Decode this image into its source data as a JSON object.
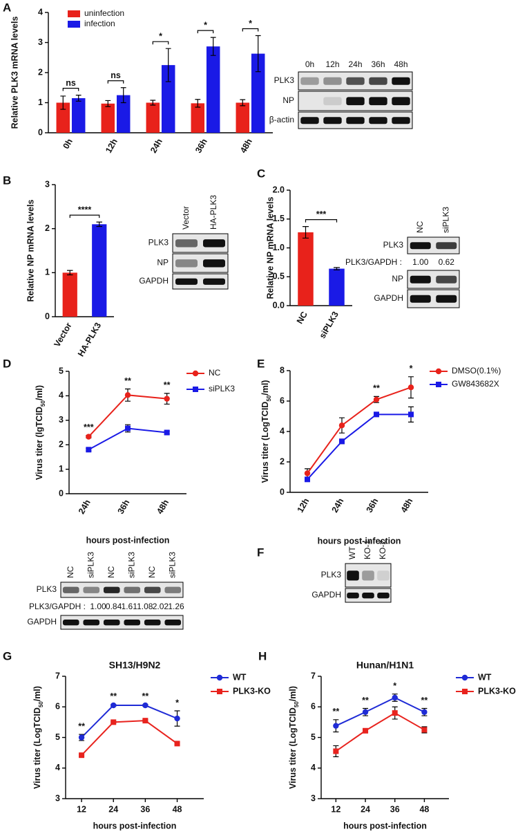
{
  "chart_data": [
    {
      "type": "bar",
      "panel": "A",
      "ylabel": "Relative PLK3 mRNA levels",
      "categories": [
        "0h",
        "12h",
        "24h",
        "36h",
        "48h"
      ],
      "series": [
        {
          "name": "uninfection",
          "color": "#e8221b",
          "values": [
            1.0,
            0.97,
            1.0,
            0.98,
            1.0
          ],
          "errors": [
            0.22,
            0.1,
            0.08,
            0.13,
            0.1
          ]
        },
        {
          "name": "infection",
          "color": "#1a1ae6",
          "values": [
            1.15,
            1.25,
            2.25,
            2.87,
            2.63
          ],
          "errors": [
            0.1,
            0.25,
            0.55,
            0.3,
            0.6
          ]
        }
      ],
      "ylim": [
        0,
        4
      ],
      "yticks": [
        0,
        1,
        2,
        3,
        4
      ],
      "annotations": [
        "ns",
        "ns",
        "*",
        "*",
        "*"
      ]
    },
    {
      "type": "bar",
      "panel": "B",
      "ylabel": "Relative NP mRNA levels",
      "categories": [
        "Vector",
        "HA-PLK3"
      ],
      "values": [
        1.0,
        2.1
      ],
      "errors": [
        0.05,
        0.05
      ],
      "colors": [
        "#e8221b",
        "#1a1ae6"
      ],
      "ylim": [
        0,
        3
      ],
      "yticks": [
        0,
        1,
        2,
        3
      ],
      "annotation": "****"
    },
    {
      "type": "bar",
      "panel": "C",
      "ylabel": "Relative NP mRNA levels",
      "categories": [
        "NC",
        "siPLK3"
      ],
      "values": [
        1.27,
        0.64
      ],
      "errors": [
        0.1,
        0.02
      ],
      "colors": [
        "#e8221b",
        "#1a1ae6"
      ],
      "ylim": [
        0,
        2
      ],
      "yticks": [
        {
          "value": 0,
          "label": "0.0"
        },
        0.5,
        {
          "value": 1,
          "label": "1.0"
        },
        1.5,
        {
          "value": 2,
          "label": "2.0"
        }
      ],
      "annotation": "***"
    },
    {
      "type": "line",
      "panel": "D",
      "ylabel": {
        "text": "Virus titer (lgTCID",
        "sub": "50",
        "tail": "/ml)"
      },
      "xlabel": "hours post-infection",
      "categories": [
        "24h",
        "36h",
        "48h"
      ],
      "series": [
        {
          "name": "NC",
          "color": "#e8221b",
          "marker": "circle",
          "values": [
            2.33,
            4.03,
            3.88
          ],
          "errors": [
            0.05,
            0.25,
            0.22
          ]
        },
        {
          "name": "siPLK3",
          "color": "#1a1ae6",
          "marker": "square",
          "values": [
            1.8,
            2.67,
            2.5
          ],
          "errors": [
            0.05,
            0.15,
            0.06
          ]
        }
      ],
      "ylim": [
        0,
        5
      ],
      "yticks": [
        0,
        1,
        2,
        3,
        4,
        5
      ],
      "annotations": [
        "***",
        "**",
        "**"
      ]
    },
    {
      "type": "line",
      "panel": "E",
      "ylabel": {
        "text": "Virus titer (LogTCID",
        "sub": "50",
        "tail": "/ml)"
      },
      "xlabel": "hours post-infection",
      "categories": [
        "12h",
        "24h",
        "36h",
        "48h"
      ],
      "series": [
        {
          "name": "DMSO(0.1%)",
          "color": "#e8221b",
          "marker": "circle",
          "values": [
            1.25,
            4.4,
            6.1,
            6.9
          ],
          "errors": [
            0.3,
            0.5,
            0.2,
            0.7
          ]
        },
        {
          "name": "GW843682X",
          "color": "#1a1ae6",
          "marker": "square",
          "values": [
            0.85,
            3.35,
            5.12,
            5.12
          ],
          "errors": [
            0.1,
            0.15,
            0.05,
            0.5
          ]
        }
      ],
      "ylim": [
        0,
        8
      ],
      "yticks": [
        0,
        2,
        4,
        6,
        8
      ],
      "annotations": [
        null,
        null,
        "**",
        "*"
      ]
    },
    {
      "type": "line",
      "panel": "G",
      "title": "SH13/H9N2",
      "ylabel": {
        "text": "Virus titer (LogTCID",
        "sub": "50",
        "tail": "/ml)"
      },
      "xlabel": "hours post-infection",
      "x": [
        12,
        24,
        36,
        48
      ],
      "xlim": [
        6,
        58
      ],
      "xticks": [
        12,
        24,
        36,
        48
      ],
      "series": [
        {
          "name": "WT",
          "color": "#1f2bd6",
          "marker": "circle",
          "values": [
            5.0,
            6.05,
            6.05,
            5.62
          ],
          "errors": [
            0.1,
            0.03,
            0.03,
            0.25
          ]
        },
        {
          "name": "PLK3-KO",
          "color": "#e8231e",
          "marker": "square",
          "values": [
            4.42,
            5.5,
            5.55,
            4.8
          ],
          "errors": [
            0.03,
            0.03,
            0.03,
            0.03
          ]
        }
      ],
      "ylim": [
        3,
        7
      ],
      "yticks": [
        3,
        4,
        5,
        6,
        7
      ],
      "annotations": [
        "**",
        "**",
        "**",
        "*"
      ]
    },
    {
      "type": "line",
      "panel": "H",
      "title": "Hunan/H1N1",
      "ylabel": {
        "text": "Virus titer (LogTCID",
        "sub": "50",
        "tail": "/ml)"
      },
      "xlabel": "hours post-infection",
      "x": [
        12,
        24,
        36,
        48
      ],
      "xlim": [
        6,
        58
      ],
      "xticks": [
        12,
        24,
        36,
        48
      ],
      "series": [
        {
          "name": "WT",
          "color": "#1f2bd6",
          "marker": "circle",
          "values": [
            5.38,
            5.83,
            6.3,
            5.83
          ],
          "errors": [
            0.2,
            0.12,
            0.12,
            0.12
          ]
        },
        {
          "name": "PLK3-KO",
          "color": "#e8231e",
          "marker": "square",
          "values": [
            4.55,
            5.22,
            5.8,
            5.25
          ],
          "errors": [
            0.18,
            0.04,
            0.2,
            0.1
          ]
        }
      ],
      "ylim": [
        3,
        7
      ],
      "yticks": [
        3,
        4,
        5,
        6,
        7
      ],
      "annotations": [
        "**",
        "**",
        "*",
        "**"
      ]
    }
  ],
  "blots": [
    {
      "columns": [
        "0h",
        "12h",
        "24h",
        "36h",
        "48h"
      ],
      "rows": [
        {
          "label": "PLK3"
        },
        {
          "label": "NP"
        },
        {
          "label": "β-actin"
        }
      ]
    },
    {
      "columns": [
        "Vector",
        "HA-PLK3"
      ],
      "rows": [
        {
          "label": "PLK3"
        },
        {
          "label": "NP"
        },
        {
          "label": "GAPDH"
        }
      ]
    },
    {
      "columns": [
        "NC",
        "siPLK3"
      ],
      "rows": [
        {
          "label": "PLK3"
        },
        {
          "label": "PLK3/GAPDH :",
          "values": [
            "1.00",
            "0.62"
          ]
        },
        {
          "label": "NP"
        },
        {
          "label": "GAPDH"
        }
      ]
    },
    {
      "columns": [
        "NC",
        "siPLK3",
        "NC",
        "siPLK3",
        "NC",
        "siPLK3"
      ],
      "rows": [
        {
          "label": "PLK3"
        },
        {
          "label": "PLK3/GAPDH :",
          "values": [
            "1.00",
            "0.84",
            "1.61",
            "1.08",
            "2.02",
            "1.26"
          ]
        },
        {
          "label": "GAPDH"
        }
      ]
    },
    {
      "panel": "F",
      "columns": [
        "WT",
        "KO-1",
        "KO-2"
      ],
      "rows": [
        {
          "label": "PLK3"
        },
        {
          "label": "GAPDH"
        }
      ]
    }
  ]
}
